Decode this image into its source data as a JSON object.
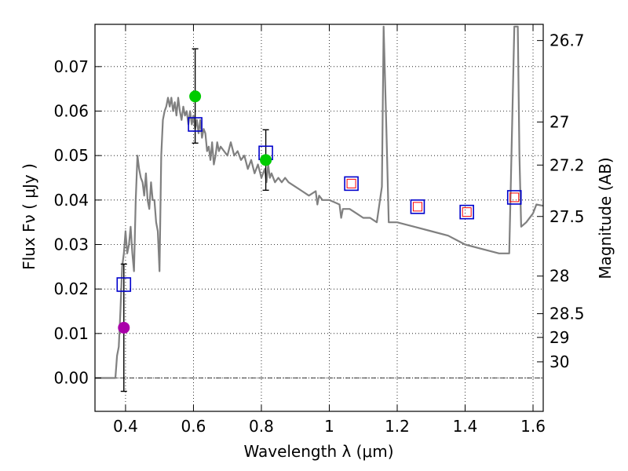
{
  "chart_data": {
    "type": "scatter",
    "xlabel": "Wavelength  λ (μm)",
    "ylabel_left": "Flux  Fν  ( μJy )",
    "ylabel_right": "Magnitude (AB)",
    "xlim": [
      0.31,
      1.63
    ],
    "ylim": [
      -0.0075,
      0.0795
    ],
    "grid": true,
    "x_ticks": [
      0.4,
      0.6,
      0.8,
      1.0,
      1.2,
      1.4,
      1.6
    ],
    "x_tick_labels": [
      "0.4",
      "0.6",
      "0.8",
      "1",
      "1.2",
      "1.4",
      "1.6"
    ],
    "y_ticks": [
      0.0,
      0.01,
      0.02,
      0.03,
      0.04,
      0.05,
      0.06,
      0.07
    ],
    "y_tick_labels": [
      "0.00",
      "0.01",
      "0.02",
      "0.03",
      "0.04",
      "0.05",
      "0.06",
      "0.07"
    ],
    "mag_ticks": [
      26.7,
      27,
      27.2,
      27.5,
      28,
      28.5,
      29,
      30
    ],
    "mag_tick_labels": [
      "26.7",
      "27",
      "27.2",
      "27.5",
      "28",
      "28.5",
      "29",
      "30"
    ],
    "colors": {
      "model": "#808080",
      "box": "#0000cc",
      "inner_box": "#ff0000",
      "green": "#00cc00",
      "magenta": "#aa00aa",
      "errorbar": "#000000",
      "zero_line": "#000000"
    },
    "model_spectrum": [
      [
        0.31,
        0.0
      ],
      [
        0.37,
        0.0
      ],
      [
        0.375,
        0.005
      ],
      [
        0.38,
        0.007
      ],
      [
        0.385,
        0.015
      ],
      [
        0.39,
        0.025
      ],
      [
        0.395,
        0.028
      ],
      [
        0.4,
        0.033
      ],
      [
        0.405,
        0.028
      ],
      [
        0.41,
        0.03
      ],
      [
        0.415,
        0.034
      ],
      [
        0.42,
        0.028
      ],
      [
        0.425,
        0.024
      ],
      [
        0.43,
        0.04
      ],
      [
        0.435,
        0.05
      ],
      [
        0.44,
        0.047
      ],
      [
        0.445,
        0.045
      ],
      [
        0.45,
        0.044
      ],
      [
        0.455,
        0.041
      ],
      [
        0.46,
        0.046
      ],
      [
        0.465,
        0.04
      ],
      [
        0.47,
        0.038
      ],
      [
        0.475,
        0.044
      ],
      [
        0.48,
        0.04
      ],
      [
        0.485,
        0.04
      ],
      [
        0.49,
        0.035
      ],
      [
        0.495,
        0.033
      ],
      [
        0.5,
        0.024
      ],
      [
        0.505,
        0.05
      ],
      [
        0.51,
        0.058
      ],
      [
        0.515,
        0.06
      ],
      [
        0.52,
        0.061
      ],
      [
        0.525,
        0.063
      ],
      [
        0.53,
        0.061
      ],
      [
        0.535,
        0.063
      ],
      [
        0.54,
        0.06
      ],
      [
        0.545,
        0.062
      ],
      [
        0.55,
        0.059
      ],
      [
        0.555,
        0.063
      ],
      [
        0.56,
        0.06
      ],
      [
        0.565,
        0.058
      ],
      [
        0.57,
        0.061
      ],
      [
        0.575,
        0.059
      ],
      [
        0.58,
        0.06
      ],
      [
        0.585,
        0.057
      ],
      [
        0.59,
        0.06
      ],
      [
        0.595,
        0.057
      ],
      [
        0.6,
        0.059
      ],
      [
        0.605,
        0.056
      ],
      [
        0.61,
        0.058
      ],
      [
        0.615,
        0.055
      ],
      [
        0.62,
        0.058
      ],
      [
        0.625,
        0.054
      ],
      [
        0.63,
        0.056
      ],
      [
        0.635,
        0.055
      ],
      [
        0.64,
        0.051
      ],
      [
        0.645,
        0.052
      ],
      [
        0.65,
        0.049
      ],
      [
        0.655,
        0.053
      ],
      [
        0.66,
        0.048
      ],
      [
        0.665,
        0.05
      ],
      [
        0.67,
        0.053
      ],
      [
        0.675,
        0.051
      ],
      [
        0.68,
        0.052
      ],
      [
        0.69,
        0.051
      ],
      [
        0.7,
        0.05
      ],
      [
        0.71,
        0.053
      ],
      [
        0.72,
        0.05
      ],
      [
        0.73,
        0.051
      ],
      [
        0.74,
        0.049
      ],
      [
        0.75,
        0.05
      ],
      [
        0.76,
        0.047
      ],
      [
        0.77,
        0.049
      ],
      [
        0.78,
        0.046
      ],
      [
        0.79,
        0.048
      ],
      [
        0.8,
        0.045
      ],
      [
        0.81,
        0.047
      ],
      [
        0.815,
        0.044
      ],
      [
        0.82,
        0.048
      ],
      [
        0.825,
        0.045
      ],
      [
        0.83,
        0.046
      ],
      [
        0.84,
        0.044
      ],
      [
        0.85,
        0.045
      ],
      [
        0.86,
        0.044
      ],
      [
        0.87,
        0.045
      ],
      [
        0.88,
        0.044
      ],
      [
        0.9,
        0.043
      ],
      [
        0.92,
        0.042
      ],
      [
        0.94,
        0.041
      ],
      [
        0.96,
        0.042
      ],
      [
        0.965,
        0.039
      ],
      [
        0.97,
        0.041
      ],
      [
        0.98,
        0.04
      ],
      [
        1.0,
        0.04
      ],
      [
        1.03,
        0.039
      ],
      [
        1.035,
        0.036
      ],
      [
        1.04,
        0.038
      ],
      [
        1.06,
        0.038
      ],
      [
        1.08,
        0.037
      ],
      [
        1.1,
        0.036
      ],
      [
        1.12,
        0.036
      ],
      [
        1.14,
        0.035
      ],
      [
        1.155,
        0.043
      ],
      [
        1.16,
        0.079
      ],
      [
        1.168,
        0.056
      ],
      [
        1.175,
        0.035
      ],
      [
        1.2,
        0.035
      ],
      [
        1.25,
        0.034
      ],
      [
        1.3,
        0.033
      ],
      [
        1.35,
        0.032
      ],
      [
        1.4,
        0.03
      ],
      [
        1.45,
        0.029
      ],
      [
        1.5,
        0.028
      ],
      [
        1.53,
        0.028
      ],
      [
        1.535,
        0.045
      ],
      [
        1.545,
        0.079
      ],
      [
        1.555,
        0.079
      ],
      [
        1.56,
        0.05
      ],
      [
        1.565,
        0.034
      ],
      [
        1.58,
        0.035
      ],
      [
        1.6,
        0.037
      ],
      [
        1.61,
        0.039
      ],
      [
        1.63,
        0.0387
      ]
    ],
    "series": [
      {
        "marker": "open-square",
        "points": [
          {
            "x": 0.395,
            "y": 0.021
          },
          {
            "x": 0.605,
            "y": 0.057
          },
          {
            "x": 0.813,
            "y": 0.0506
          },
          {
            "x": 1.065,
            "y": 0.0437
          },
          {
            "x": 1.26,
            "y": 0.0385
          },
          {
            "x": 1.405,
            "y": 0.0373
          },
          {
            "x": 1.545,
            "y": 0.0406
          }
        ]
      },
      {
        "marker": "small-open-square",
        "points": [
          {
            "x": 1.065,
            "y": 0.0437
          },
          {
            "x": 1.26,
            "y": 0.0385
          },
          {
            "x": 1.405,
            "y": 0.0373
          },
          {
            "x": 1.545,
            "y": 0.0406
          }
        ]
      },
      {
        "marker": "filled-circle",
        "points": [
          {
            "x": 0.395,
            "y": 0.0113,
            "yerr_low": 0.0143,
            "yerr_high": 0.0143,
            "color_key": "magenta"
          },
          {
            "x": 0.605,
            "y": 0.0633,
            "yerr_low": 0.0105,
            "yerr_high": 0.0107,
            "color_key": "green"
          },
          {
            "x": 0.813,
            "y": 0.049,
            "yerr_low": 0.0068,
            "yerr_high": 0.0068,
            "color_key": "green"
          }
        ]
      }
    ]
  }
}
